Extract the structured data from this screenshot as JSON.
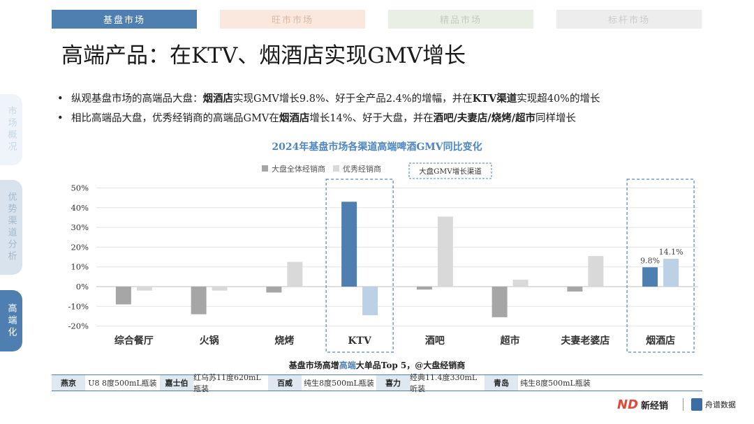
{
  "tabs": [
    "基盘市场",
    "旺市市场",
    "精品市场",
    "标杆市场"
  ],
  "title": "高端产品：在KTV、烟酒店实现GMV增长",
  "side_nav": [
    "市场概况",
    "优势渠道分析",
    "高端化"
  ],
  "bullets": [
    [
      {
        "t": "纵观基盘市场的高端品大盘：",
        "b": false
      },
      {
        "t": "烟酒店",
        "b": true
      },
      {
        "t": "实现GMV增长9.8%、好于全产品2.4%的增幅，并在",
        "b": false
      },
      {
        "t": "KTV渠道",
        "b": true
      },
      {
        "t": "实现超40%的增长",
        "b": false
      }
    ],
    [
      {
        "t": "相比高端品大盘，优秀经销商的高端品GMV在",
        "b": false
      },
      {
        "t": "烟酒店",
        "b": true
      },
      {
        "t": "增长14%、好于大盘，并在",
        "b": false
      },
      {
        "t": "酒吧/夫妻店/烧烤/超市",
        "b": true
      },
      {
        "t": "同样增长",
        "b": false
      }
    ]
  ],
  "chart_data": {
    "type": "bar",
    "title": "2024年基盘市场各渠道高端啤酒GMV同比变化",
    "categories": [
      "综合餐厅",
      "火锅",
      "烧烤",
      "KTV",
      "酒吧",
      "超市",
      "夫妻老婆店",
      "烟酒店"
    ],
    "series": [
      {
        "name": "大盘全体经销商",
        "values": [
          -9,
          -14,
          -3,
          43,
          -1.5,
          -15.5,
          -2.5,
          9.8
        ],
        "color": "#a6a6a6"
      },
      {
        "name": "优秀经销商",
        "values": [
          -2,
          -2,
          12.5,
          -14.5,
          35.5,
          3.5,
          15.5,
          14.1
        ],
        "color": "#d9d9d9"
      }
    ],
    "highlight_color_1": "#4f7fb1",
    "highlight_color_2": "#bcd1e3",
    "highlight_categories": [
      "KTV",
      "烟酒店"
    ],
    "highlight_legend": "大盘GMV增长渠道",
    "data_labels": {
      "烟酒店": [
        "9.8%",
        "14.1%"
      ]
    },
    "y_ticks": [
      50,
      40,
      30,
      20,
      10,
      0,
      -10,
      -20
    ],
    "y_tick_labels": [
      "50%",
      "40%",
      "30%",
      "20%",
      "10%",
      "0%",
      "-10%",
      "-20%"
    ],
    "ylim": [
      -20,
      50
    ],
    "grid": true,
    "legend_position": "top-center"
  },
  "bottom_title": {
    "pre": "基盘市场高增",
    "hl": "高端",
    "post": "大单品Top 5，@大盘经销商"
  },
  "brands": [
    {
      "name": "燕京",
      "product": "U8 8度500mL瓶装"
    },
    {
      "name": "嘉士伯",
      "product": "红乌苏11度620mL瓶装"
    },
    {
      "name": "百威",
      "product": "纯生8度500mL瓶装"
    },
    {
      "name": "喜力",
      "product": "经典11.4度330mL听装"
    },
    {
      "name": "青岛",
      "product": "纯生8度500mL瓶装"
    }
  ],
  "logos": {
    "xinjingxiao": "新经销",
    "zhoupu": "舟谱数据"
  }
}
